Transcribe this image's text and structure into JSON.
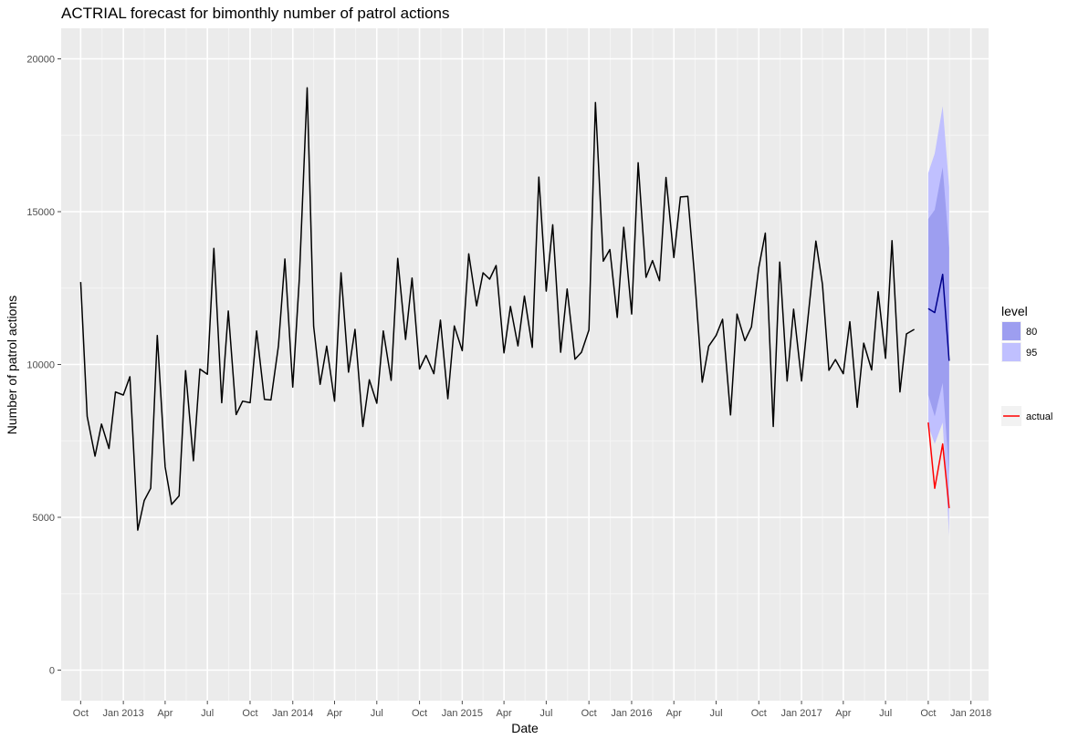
{
  "chart_data": {
    "type": "line",
    "title": "ACTRIAL forecast for bimonthly number of patrol actions",
    "xlabel": "Date",
    "ylabel": "Number of patrol actions",
    "xlim": [
      "2012-08-20",
      "2018-02-08"
    ],
    "ylim": [
      -1000,
      21000
    ],
    "grid": true,
    "x_ticks": [
      {
        "date": "2012-10-01",
        "label": "Oct"
      },
      {
        "date": "2013-01-01",
        "label": "Jan 2013"
      },
      {
        "date": "2013-04-01",
        "label": "Apr"
      },
      {
        "date": "2013-07-01",
        "label": "Jul"
      },
      {
        "date": "2013-10-01",
        "label": "Oct"
      },
      {
        "date": "2014-01-01",
        "label": "Jan 2014"
      },
      {
        "date": "2014-04-01",
        "label": "Apr"
      },
      {
        "date": "2014-07-01",
        "label": "Jul"
      },
      {
        "date": "2014-10-01",
        "label": "Oct"
      },
      {
        "date": "2015-01-01",
        "label": "Jan 2015"
      },
      {
        "date": "2015-04-01",
        "label": "Apr"
      },
      {
        "date": "2015-07-01",
        "label": "Jul"
      },
      {
        "date": "2015-10-01",
        "label": "Oct"
      },
      {
        "date": "2016-01-01",
        "label": "Jan 2016"
      },
      {
        "date": "2016-04-01",
        "label": "Apr"
      },
      {
        "date": "2016-07-01",
        "label": "Jul"
      },
      {
        "date": "2016-10-01",
        "label": "Oct"
      },
      {
        "date": "2017-01-01",
        "label": "Jan 2017"
      },
      {
        "date": "2017-04-01",
        "label": "Apr"
      },
      {
        "date": "2017-07-01",
        "label": "Jul"
      },
      {
        "date": "2017-10-01",
        "label": "Oct"
      },
      {
        "date": "2018-01-01",
        "label": "Jan 2018"
      }
    ],
    "y_ticks": [
      {
        "value": 0,
        "label": "0"
      },
      {
        "value": 5000,
        "label": "5000"
      },
      {
        "value": 10000,
        "label": "10000"
      },
      {
        "value": 15000,
        "label": "15000"
      },
      {
        "value": 20000,
        "label": "20000"
      }
    ],
    "series": [
      {
        "name": "",
        "color": "#000000",
        "x": [
          "2012-10-01",
          "2012-10-15",
          "2012-11-01",
          "2012-11-15",
          "2012-12-01",
          "2012-12-15",
          "2013-01-01",
          "2013-01-15",
          "2013-02-01",
          "2013-02-15",
          "2013-03-01",
          "2013-03-15",
          "2013-04-01",
          "2013-04-15",
          "2013-05-01",
          "2013-05-15",
          "2013-06-01",
          "2013-06-15",
          "2013-07-01",
          "2013-07-15",
          "2013-08-01",
          "2013-08-15",
          "2013-09-01",
          "2013-09-15",
          "2013-10-01",
          "2013-10-15",
          "2013-11-01",
          "2013-11-15",
          "2013-12-01",
          "2013-12-15",
          "2014-01-01",
          "2014-01-15",
          "2014-02-01",
          "2014-02-15",
          "2014-03-01",
          "2014-03-15",
          "2014-04-01",
          "2014-04-15",
          "2014-05-01",
          "2014-05-15",
          "2014-06-01",
          "2014-06-15",
          "2014-07-01",
          "2014-07-15",
          "2014-08-01",
          "2014-08-15",
          "2014-09-01",
          "2014-09-15",
          "2014-10-01",
          "2014-10-15",
          "2014-11-01",
          "2014-11-15",
          "2014-12-01",
          "2014-12-15",
          "2015-01-01",
          "2015-01-15",
          "2015-02-01",
          "2015-02-15",
          "2015-03-01",
          "2015-03-15",
          "2015-04-01",
          "2015-04-15",
          "2015-05-01",
          "2015-05-15",
          "2015-06-01",
          "2015-06-15",
          "2015-07-01",
          "2015-07-15",
          "2015-08-01",
          "2015-08-15",
          "2015-09-01",
          "2015-09-15",
          "2015-10-01",
          "2015-10-15",
          "2015-11-01",
          "2015-11-15",
          "2015-12-01",
          "2015-12-15",
          "2016-01-01",
          "2016-01-15",
          "2016-02-01",
          "2016-02-15",
          "2016-03-01",
          "2016-03-15",
          "2016-04-01",
          "2016-04-15",
          "2016-05-01",
          "2016-05-15",
          "2016-06-01",
          "2016-06-15",
          "2016-07-01",
          "2016-07-15",
          "2016-08-01",
          "2016-08-15",
          "2016-09-01",
          "2016-09-15",
          "2016-10-01",
          "2016-10-15",
          "2016-11-01",
          "2016-11-15",
          "2016-12-01",
          "2016-12-15",
          "2017-01-01",
          "2017-01-15",
          "2017-02-01",
          "2017-02-15",
          "2017-03-01",
          "2017-03-15",
          "2017-04-01",
          "2017-04-15",
          "2017-05-01",
          "2017-05-15",
          "2017-06-01",
          "2017-06-15",
          "2017-07-01",
          "2017-07-15",
          "2017-08-01",
          "2017-08-15",
          "2017-09-01"
        ],
        "y": [
          12700,
          8300,
          7000,
          8050,
          7250,
          9100,
          9000,
          9600,
          4580,
          5550,
          5950,
          10950,
          6650,
          5420,
          5700,
          9800,
          6850,
          9850,
          9680,
          13800,
          8750,
          11750,
          8360,
          8800,
          8750,
          11100,
          8860,
          8840,
          10600,
          13450,
          9260,
          12800,
          19050,
          11250,
          9350,
          10600,
          8800,
          13000,
          9750,
          11150,
          7970,
          9500,
          8730,
          11100,
          9480,
          13470,
          10820,
          12830,
          9850,
          10300,
          9700,
          11450,
          8880,
          11260,
          10450,
          13620,
          11920,
          13000,
          12790,
          13240,
          10380,
          11900,
          10610,
          12240,
          10560,
          16130,
          12400,
          14570,
          10400,
          12470,
          10170,
          10400,
          11130,
          18570,
          13380,
          13760,
          11540,
          14490,
          11650,
          16600,
          12850,
          13400,
          12740,
          16120,
          13500,
          15480,
          15500,
          13000,
          9420,
          10600,
          10950,
          11480,
          8350,
          11650,
          10780,
          11230,
          13180,
          14300,
          7970,
          13350,
          9460,
          11810,
          9460,
          11540,
          14040,
          12620,
          9810,
          10160,
          9700,
          11400,
          8600,
          10700,
          9820,
          12380,
          10200,
          14050,
          9100,
          11000,
          11150
        ]
      },
      {
        "name": "",
        "color": "#00008b",
        "x": [
          "2017-10-01",
          "2017-10-15",
          "2017-11-01",
          "2017-11-15"
        ],
        "y": [
          11830,
          11700,
          12950,
          10120
        ]
      },
      {
        "name": "actual",
        "color": "#ff0000",
        "x": [
          "2017-10-01",
          "2017-10-15",
          "2017-11-01",
          "2017-11-15"
        ],
        "y": [
          8100,
          5950,
          7400,
          5300
        ]
      }
    ],
    "bands": [
      {
        "level": "95",
        "color": "#c0c0ff",
        "x": [
          "2017-10-01",
          "2017-10-15",
          "2017-11-01",
          "2017-11-15"
        ],
        "lower": [
          8000,
          7400,
          8100,
          4400
        ],
        "upper": [
          16270,
          16900,
          18450,
          15800
        ]
      },
      {
        "level": "80",
        "color": "#9d9ef0",
        "x": [
          "2017-10-01",
          "2017-10-15",
          "2017-11-01",
          "2017-11-15"
        ],
        "lower": [
          9000,
          8300,
          9400,
          6400
        ],
        "upper": [
          14760,
          15060,
          16450,
          13820
        ]
      }
    ],
    "legend": {
      "placement": "right",
      "level_title": "level",
      "level_items": [
        {
          "label": "80",
          "color": "#9d9ef0"
        },
        {
          "label": "95",
          "color": "#c0c0ff"
        }
      ],
      "line_items": [
        {
          "label": "actual",
          "color": "#ff0000"
        }
      ]
    }
  }
}
